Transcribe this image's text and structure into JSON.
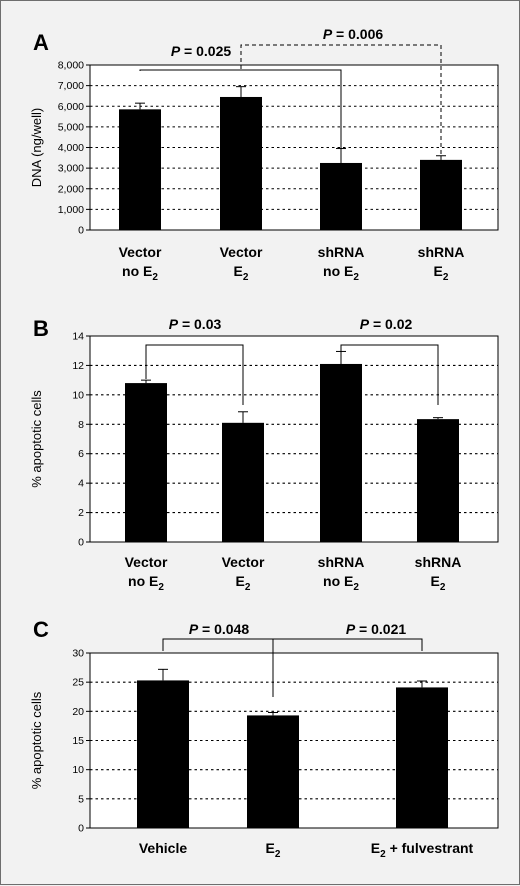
{
  "chart_data": [
    {
      "panel": "A",
      "type": "bar",
      "ylabel": "DNA (ng/well)",
      "ylim": [
        0,
        8000
      ],
      "yticks": [
        "0",
        "1,000",
        "2,000",
        "3,000",
        "4,000",
        "5,000",
        "6,000",
        "7,000",
        "8,000"
      ],
      "ytick_values": [
        0,
        1000,
        2000,
        3000,
        4000,
        5000,
        6000,
        7000,
        8000
      ],
      "grid": true,
      "categories": [
        {
          "line1": "Vector",
          "line2": "no E",
          "sub": "2"
        },
        {
          "line1": "Vector",
          "line2": "E",
          "sub": "2"
        },
        {
          "line1": "shRNA",
          "line2": "no E",
          "sub": "2"
        },
        {
          "line1": "shRNA",
          "line2": "E",
          "sub": "2"
        }
      ],
      "values": [
        5850,
        6450,
        3250,
        3400
      ],
      "errors": [
        300,
        500,
        700,
        200
      ],
      "comparisons": [
        {
          "label": "P = 0.025",
          "from": 0,
          "to": 2,
          "style": "solid"
        },
        {
          "label": "P = 0.006",
          "from": 1,
          "to": 3,
          "style": "dashed"
        }
      ]
    },
    {
      "panel": "B",
      "type": "bar",
      "ylabel": "% apoptotic cells",
      "ylim": [
        0,
        14
      ],
      "yticks": [
        "0",
        "2",
        "4",
        "6",
        "8",
        "10",
        "12",
        "14"
      ],
      "ytick_values": [
        0,
        2,
        4,
        6,
        8,
        10,
        12,
        14
      ],
      "grid": true,
      "categories": [
        {
          "line1": "Vector",
          "line2": "no E",
          "sub": "2"
        },
        {
          "line1": "Vector",
          "line2": "E",
          "sub": "2"
        },
        {
          "line1": "shRNA",
          "line2": "no E",
          "sub": "2"
        },
        {
          "line1": "shRNA",
          "line2": "E",
          "sub": "2"
        }
      ],
      "values": [
        10.8,
        8.1,
        12.1,
        8.35
      ],
      "errors": [
        0.2,
        0.75,
        0.85,
        0.1
      ],
      "comparisons": [
        {
          "label": "P = 0.03",
          "from": 0,
          "to": 1,
          "style": "solid"
        },
        {
          "label": "P = 0.02",
          "from": 2,
          "to": 3,
          "style": "solid"
        }
      ]
    },
    {
      "panel": "C",
      "type": "bar",
      "ylabel": "% apoptotic cells",
      "ylim": [
        0,
        30
      ],
      "yticks": [
        "0",
        "5",
        "10",
        "15",
        "20",
        "25",
        "30"
      ],
      "ytick_values": [
        0,
        5,
        10,
        15,
        20,
        25,
        30
      ],
      "grid": true,
      "categories": [
        {
          "line1": "Vehicle",
          "line2": "",
          "sub": ""
        },
        {
          "line1": "",
          "line2": "E",
          "sub": "2"
        },
        {
          "line1": "",
          "line2": "E",
          "sub": "2",
          "suffix": " + fulvestrant"
        }
      ],
      "values": [
        25.3,
        19.3,
        24.1
      ],
      "errors": [
        1.9,
        0.5,
        1.1
      ],
      "comparisons": [
        {
          "label": "P = 0.048",
          "from": 0,
          "to": 1,
          "style": "solid"
        },
        {
          "label": "P = 0.021",
          "from": 1,
          "to": 2,
          "style": "solid"
        }
      ]
    }
  ]
}
